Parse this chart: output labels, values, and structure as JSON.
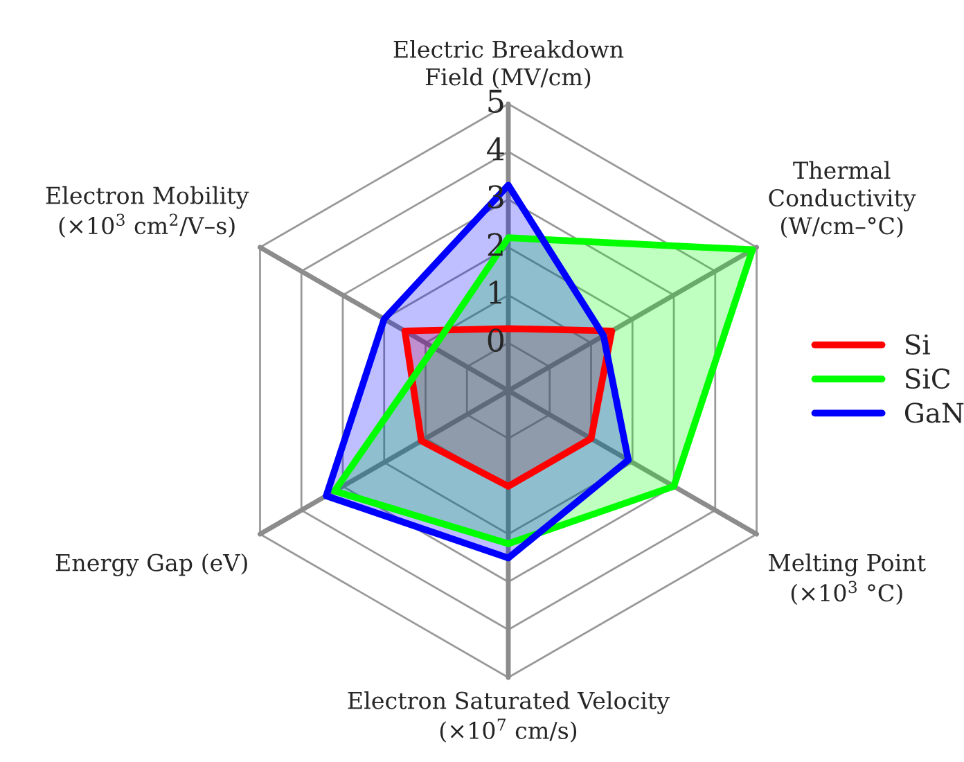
{
  "chart_data": {
    "type": "radar",
    "categories": [
      "Electric Breakdown\nField (MV/cm)",
      "Thermal\nConductivity\n(W/cm–°C)",
      "Melting Point\n(×10$^{3}$ °C)",
      "Electron Saturated Velocity\n(×10$^{7}$ cm/s)",
      "Energy Gap (eV)",
      "Electron Mobility\n(×10$^{3}$ cm$^{2}$/V–s)"
    ],
    "series": [
      {
        "name": "Si",
        "color": "#ff0000",
        "values": [
          0.3,
          1.5,
          1.0,
          1.0,
          1.1,
          1.5
        ]
      },
      {
        "name": "SiC",
        "color": "#00ff00",
        "values": [
          2.2,
          4.9,
          3.0,
          2.2,
          3.2,
          0.8
        ]
      },
      {
        "name": "GaN",
        "color": "#0000ff",
        "values": [
          3.3,
          1.3,
          1.9,
          2.5,
          3.4,
          2.0
        ]
      }
    ],
    "ylim": [
      -1,
      5
    ],
    "yticks": [
      0,
      1,
      2,
      3,
      4,
      5
    ],
    "grid": true,
    "legend": "right"
  }
}
